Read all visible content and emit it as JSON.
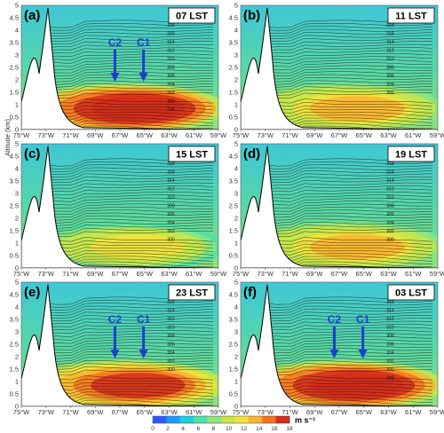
{
  "figure": {
    "y_axis_label": "Altitude (km)",
    "colorbar": {
      "unit": "m s⁻¹",
      "ticks": [
        0,
        2,
        4,
        6,
        8,
        10,
        12,
        14,
        16,
        18
      ],
      "colors": [
        "#2b5bff",
        "#1f9bff",
        "#19d1e0",
        "#4ee0a6",
        "#8ee67a",
        "#c8e64a",
        "#f2e23c",
        "#fdb32e",
        "#f7731f",
        "#d62d1a",
        "#8a0f0f"
      ]
    }
  },
  "chart_data": [
    {
      "type": "heatmap",
      "panel": "(a)",
      "time": "07 LST",
      "jet_core_cores": [
        "C2",
        "C1"
      ],
      "max_speed_ms": 17,
      "contour_labels": [
        "318",
        "316",
        "314",
        "312",
        "310",
        "308",
        "306",
        "304",
        "302",
        "300",
        "298"
      ],
      "x_ticks": [
        "75°W",
        "73°W",
        "71°W",
        "69°W",
        "67°W",
        "65°W",
        "63°W",
        "61°W",
        "59°W"
      ],
      "y_ticks": [
        "0",
        "0.5",
        "1",
        "1.5",
        "2",
        "2.5",
        "3",
        "3.5",
        "4",
        "4.5",
        "5"
      ],
      "ylim_km": [
        0,
        5
      ],
      "xlim_deg": [
        -75,
        -59
      ]
    },
    {
      "type": "heatmap",
      "panel": "(b)",
      "time": "11 LST",
      "jet_core_cores": [],
      "max_speed_ms": 12,
      "contour_labels": [
        "318",
        "316",
        "314",
        "312",
        "310",
        "308",
        "306",
        "304",
        "302"
      ],
      "x_ticks": [
        "75°W",
        "73°W",
        "71°W",
        "69°W",
        "67°W",
        "65°W",
        "63°W",
        "61°W",
        "59°W"
      ],
      "y_ticks": [
        "0",
        "0.5",
        "1",
        "1.5",
        "2",
        "2.5",
        "3",
        "3.5",
        "4",
        "4.5",
        "5"
      ],
      "ylim_km": [
        0,
        5
      ],
      "xlim_deg": [
        -75,
        -59
      ]
    },
    {
      "type": "heatmap",
      "panel": "(c)",
      "time": "15 LST",
      "jet_core_cores": [],
      "max_speed_ms": 10,
      "contour_labels": [
        "318",
        "316",
        "314",
        "312",
        "310",
        "308",
        "306",
        "304",
        "302",
        "300"
      ],
      "x_ticks": [
        "75°W",
        "73°W",
        "71°W",
        "69°W",
        "67°W",
        "65°W",
        "63°W",
        "61°W",
        "59°W"
      ],
      "y_ticks": [
        "0",
        "0.5",
        "1",
        "1.5",
        "2",
        "2.5",
        "3",
        "3.5",
        "4",
        "4.5",
        "5"
      ],
      "ylim_km": [
        0,
        5
      ],
      "xlim_deg": [
        -75,
        -59
      ]
    },
    {
      "type": "heatmap",
      "panel": "(d)",
      "time": "19 LST",
      "jet_core_cores": [],
      "max_speed_ms": 12,
      "contour_labels": [
        "318",
        "316",
        "314",
        "312",
        "310",
        "308",
        "306",
        "304",
        "302",
        "300"
      ],
      "x_ticks": [
        "75°W",
        "73°W",
        "71°W",
        "69°W",
        "67°W",
        "65°W",
        "63°W",
        "61°W",
        "59°W"
      ],
      "y_ticks": [
        "0",
        "0.5",
        "1",
        "1.5",
        "2",
        "2.5",
        "3",
        "3.5",
        "4",
        "4.5",
        "5"
      ],
      "ylim_km": [
        0,
        5
      ],
      "xlim_deg": [
        -75,
        -59
      ]
    },
    {
      "type": "heatmap",
      "panel": "(e)",
      "time": "23 LST",
      "jet_core_cores": [
        "C2",
        "C1"
      ],
      "max_speed_ms": 16,
      "contour_labels": [
        "316",
        "314",
        "312",
        "310",
        "308",
        "306",
        "304",
        "302",
        "300"
      ],
      "x_ticks": [
        "75°W",
        "73°W",
        "71°W",
        "69°W",
        "67°W",
        "65°W",
        "63°W",
        "61°W",
        "59°W"
      ],
      "y_ticks": [
        "0",
        "0.5",
        "1",
        "1.5",
        "2",
        "2.5",
        "3",
        "3.5",
        "4",
        "4.5",
        "5"
      ],
      "ylim_km": [
        0,
        5
      ],
      "xlim_deg": [
        -75,
        -59
      ]
    },
    {
      "type": "heatmap",
      "panel": "(f)",
      "time": "03 LST",
      "jet_core_cores": [
        "C2",
        "C1"
      ],
      "max_speed_ms": 17,
      "contour_labels": [
        "316",
        "314",
        "312",
        "310",
        "308",
        "306",
        "304",
        "302",
        "300",
        "298"
      ],
      "x_ticks": [
        "75°W",
        "73°W",
        "71°W",
        "69°W",
        "67°W",
        "65°W",
        "63°W",
        "61°W",
        "59°W"
      ],
      "y_ticks": [
        "0",
        "0.5",
        "1",
        "1.5",
        "2",
        "2.5",
        "3",
        "3.5",
        "4",
        "4.5",
        "5"
      ],
      "ylim_km": [
        0,
        5
      ],
      "xlim_deg": [
        -75,
        -59
      ]
    }
  ]
}
